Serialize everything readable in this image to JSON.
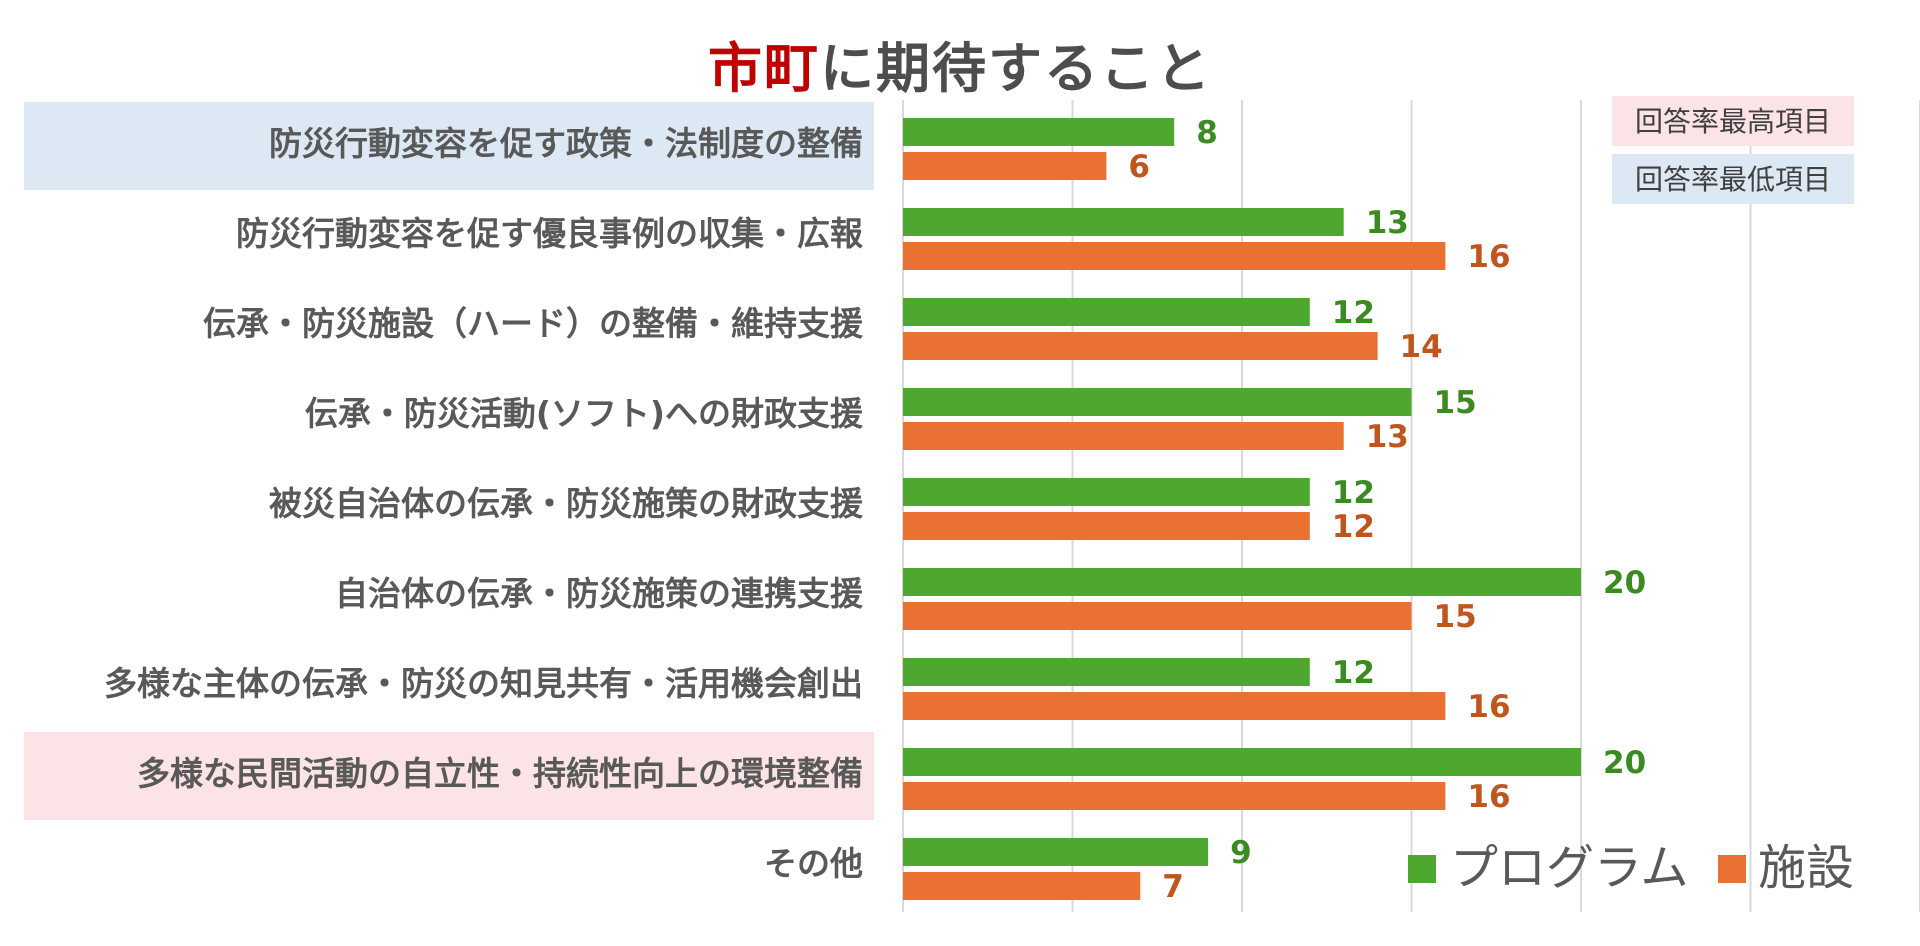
{
  "title": {
    "accent": "市町",
    "rest": "に期待すること"
  },
  "highlight_legend": {
    "highest": {
      "label": "回答率最高項目",
      "color": "#fce4e6"
    },
    "lowest": {
      "label": "回答率最低項目",
      "color": "#dce9f5"
    }
  },
  "colors": {
    "program": "#4ea72e",
    "facility": "#e97132",
    "program_text": "#3b8a22",
    "facility_text": "#c0561f"
  },
  "chart_data": {
    "type": "bar",
    "orientation": "horizontal",
    "title": "市町に期待すること",
    "categories": [
      "防災行動変容を促す政策・法制度の整備",
      "防災行動変容を促す優良事例の収集・広報",
      "伝承・防災施設（ハード）の整備・維持支援",
      "伝承・防災活動(ソフト)への財政支援",
      "被災自治体の伝承・防災施策の財政支援",
      "自治体の伝承・防災施策の連携支援",
      "多様な主体の伝承・防災の知見共有・活用機会創出",
      "多様な民間活動の自立性・持続性向上の環境整備",
      "その他"
    ],
    "series": [
      {
        "name": "プログラム",
        "values": [
          8,
          13,
          12,
          15,
          12,
          20,
          12,
          20,
          9
        ]
      },
      {
        "name": "施設",
        "values": [
          6,
          16,
          14,
          13,
          12,
          15,
          16,
          16,
          7
        ]
      }
    ],
    "xlim": [
      0,
      30
    ],
    "grid": true,
    "legend": "bottom-right",
    "highlights": {
      "highest": [
        7
      ],
      "lowest": [
        0
      ]
    }
  }
}
